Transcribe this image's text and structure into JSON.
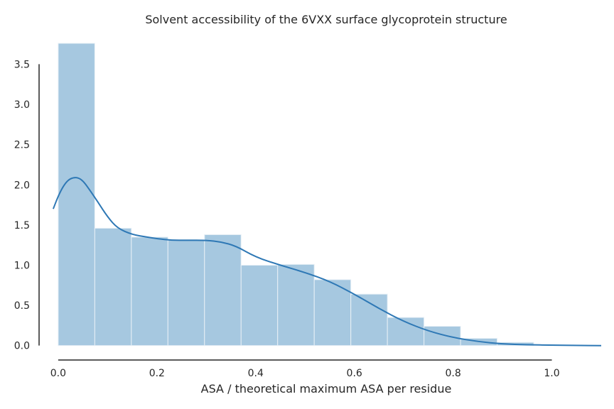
{
  "chart_data": {
    "type": "bar",
    "subtype": "histogram-with-kde",
    "title": "Solvent accessibility of the 6VXX surface glycoprotein structure",
    "xlabel": "ASA / theoretical maximum ASA per residue",
    "ylabel": "",
    "xlim": [
      -0.02,
      1.1
    ],
    "ylim": [
      -0.1,
      3.76
    ],
    "x_ticks": [
      "0.0",
      "0.2",
      "0.4",
      "0.6",
      "0.8",
      "1.0"
    ],
    "x_tick_values": [
      0.0,
      0.2,
      0.4,
      0.6,
      0.8,
      1.0
    ],
    "y_ticks": [
      "0.0",
      "0.5",
      "1.0",
      "1.5",
      "2.0",
      "2.5",
      "3.0",
      "3.5"
    ],
    "y_tick_values": [
      0.0,
      0.5,
      1.0,
      1.5,
      2.0,
      2.5,
      3.0,
      3.5
    ],
    "bin_width": 0.0741,
    "bins": [
      {
        "x0": 0.0,
        "x1": 0.0741,
        "value": 3.76
      },
      {
        "x0": 0.0741,
        "x1": 0.1482,
        "value": 1.46
      },
      {
        "x0": 0.1482,
        "x1": 0.2223,
        "value": 1.35
      },
      {
        "x0": 0.2223,
        "x1": 0.2964,
        "value": 1.32
      },
      {
        "x0": 0.2964,
        "x1": 0.3705,
        "value": 1.38
      },
      {
        "x0": 0.3705,
        "x1": 0.4446,
        "value": 1.0
      },
      {
        "x0": 0.4446,
        "x1": 0.5187,
        "value": 1.01
      },
      {
        "x0": 0.5187,
        "x1": 0.5928,
        "value": 0.82
      },
      {
        "x0": 0.5928,
        "x1": 0.6669,
        "value": 0.64
      },
      {
        "x0": 0.6669,
        "x1": 0.741,
        "value": 0.35
      },
      {
        "x0": 0.741,
        "x1": 0.8151,
        "value": 0.24
      },
      {
        "x0": 0.8151,
        "x1": 0.8892,
        "value": 0.09
      },
      {
        "x0": 0.8892,
        "x1": 0.9633,
        "value": 0.04
      }
    ],
    "kde": {
      "x": [
        -0.01,
        0.0,
        0.01,
        0.02,
        0.03,
        0.04,
        0.05,
        0.06,
        0.08,
        0.1,
        0.12,
        0.15,
        0.18,
        0.2,
        0.23,
        0.26,
        0.3,
        0.33,
        0.36,
        0.4,
        0.45,
        0.5,
        0.55,
        0.6,
        0.65,
        0.7,
        0.75,
        0.8,
        0.85,
        0.9,
        0.95,
        1.0,
        1.05,
        1.1
      ],
      "y": [
        1.7,
        1.86,
        1.98,
        2.06,
        2.09,
        2.09,
        2.05,
        1.97,
        1.79,
        1.6,
        1.46,
        1.38,
        1.35,
        1.33,
        1.31,
        1.31,
        1.31,
        1.29,
        1.24,
        1.1,
        1.0,
        0.91,
        0.8,
        0.64,
        0.46,
        0.3,
        0.18,
        0.1,
        0.05,
        0.02,
        0.01,
        0.005,
        0.002,
        0.0
      ]
    },
    "colors": {
      "bar": "#a6c8e0",
      "bar_edge": "#e8f0f6",
      "kde": "#2e78b5",
      "axis": "#262626"
    },
    "grid": false,
    "legend": "none"
  }
}
